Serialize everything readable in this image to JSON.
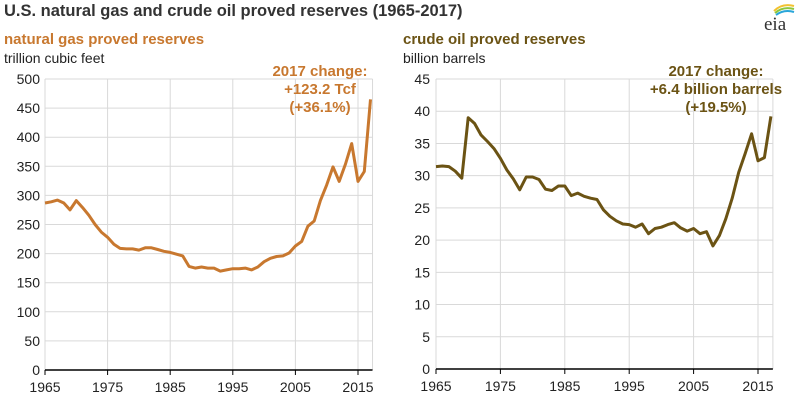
{
  "title": "U.S. natural gas and crude oil proved reserves (1965-2017)",
  "logo_text": "eia",
  "colors": {
    "gas": "#c8782f",
    "oil": "#6b5314",
    "grid": "#d9d9d9",
    "axis": "#000000"
  },
  "chart_data": [
    {
      "type": "line",
      "title": "natural gas proved reserves",
      "ylabel": "trillion cubic feet",
      "xlim": [
        1965,
        2017
      ],
      "ylim": [
        0,
        500
      ],
      "yticks": [
        0,
        50,
        100,
        150,
        200,
        250,
        300,
        350,
        400,
        450,
        500
      ],
      "xticks": [
        1965,
        1975,
        1985,
        1995,
        2005,
        2015
      ],
      "grid": true,
      "annotation": [
        "2017 change:",
        "+123.2 Tcf",
        "(+36.1%)"
      ],
      "x": [
        1965,
        1966,
        1967,
        1968,
        1969,
        1970,
        1971,
        1972,
        1973,
        1974,
        1975,
        1976,
        1977,
        1978,
        1979,
        1980,
        1981,
        1982,
        1983,
        1984,
        1985,
        1986,
        1987,
        1988,
        1989,
        1990,
        1991,
        1992,
        1993,
        1994,
        1995,
        1996,
        1997,
        1998,
        1999,
        2000,
        2001,
        2002,
        2003,
        2004,
        2005,
        2006,
        2007,
        2008,
        2009,
        2010,
        2011,
        2012,
        2013,
        2014,
        2015,
        2016,
        2017
      ],
      "series": [
        {
          "name": "natural gas proved reserves",
          "values": [
            287,
            289,
            292,
            287,
            275,
            291,
            279,
            266,
            250,
            237,
            228,
            216,
            209,
            208,
            208,
            206,
            210,
            210,
            207,
            204,
            202,
            199,
            196,
            178,
            175,
            177,
            175,
            175,
            170,
            172,
            174,
            174,
            175,
            172,
            177,
            186,
            192,
            195,
            196,
            201,
            213,
            221,
            247,
            256,
            291,
            318,
            349,
            324,
            354,
            389,
            324,
            341,
            465
          ]
        }
      ]
    },
    {
      "type": "line",
      "title": "crude oil proved reserves",
      "ylabel": "billion barrels",
      "xlim": [
        1965,
        2017
      ],
      "ylim": [
        0,
        45
      ],
      "yticks": [
        0,
        5,
        10,
        15,
        20,
        25,
        30,
        35,
        40,
        45
      ],
      "xticks": [
        1965,
        1975,
        1985,
        1995,
        2005,
        2015
      ],
      "grid": true,
      "annotation": [
        "2017 change:",
        "+6.4 billion barrels",
        "(+19.5%)"
      ],
      "x": [
        1965,
        1966,
        1967,
        1968,
        1969,
        1970,
        1971,
        1972,
        1973,
        1974,
        1975,
        1976,
        1977,
        1978,
        1979,
        1980,
        1981,
        1982,
        1983,
        1984,
        1985,
        1986,
        1987,
        1988,
        1989,
        1990,
        1991,
        1992,
        1993,
        1994,
        1995,
        1996,
        1997,
        1998,
        1999,
        2000,
        2001,
        2002,
        2003,
        2004,
        2005,
        2006,
        2007,
        2008,
        2009,
        2010,
        2011,
        2012,
        2013,
        2014,
        2015,
        2016,
        2017
      ],
      "series": [
        {
          "name": "crude oil proved reserves",
          "values": [
            31.4,
            31.5,
            31.4,
            30.7,
            29.6,
            39.0,
            38.1,
            36.3,
            35.3,
            34.2,
            32.7,
            30.9,
            29.5,
            27.8,
            29.8,
            29.8,
            29.4,
            27.9,
            27.7,
            28.4,
            28.4,
            26.9,
            27.3,
            26.8,
            26.5,
            26.3,
            24.7,
            23.7,
            23.0,
            22.5,
            22.4,
            22.0,
            22.5,
            21.0,
            21.8,
            22.0,
            22.4,
            22.7,
            21.9,
            21.4,
            21.8,
            21.0,
            21.3,
            19.1,
            20.7,
            23.3,
            26.5,
            30.5,
            33.4,
            36.5,
            32.3,
            32.8,
            39.2
          ]
        }
      ]
    }
  ]
}
